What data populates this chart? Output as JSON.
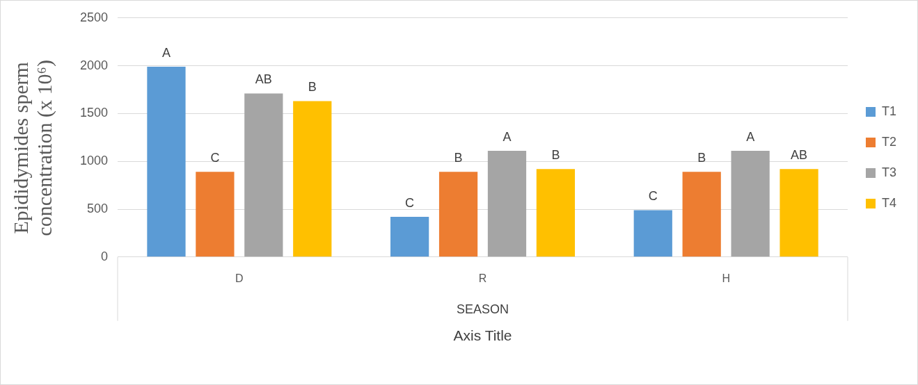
{
  "chart_data": {
    "type": "bar",
    "ylabel": "Epididymides sperm concentration (x 10⁶)",
    "xlabel": "Axis Title",
    "annotations": [
      "SEASON"
    ],
    "categories": [
      "D",
      "R",
      "H"
    ],
    "series": [
      {
        "name": "T1",
        "color": "#5b9bd5",
        "values": [
          1990,
          420,
          490
        ],
        "value_labels": [
          "A",
          "C",
          "C"
        ]
      },
      {
        "name": "T2",
        "color": "#ed7d31",
        "values": [
          890,
          890,
          890
        ],
        "value_labels": [
          "C",
          "B",
          "B"
        ]
      },
      {
        "name": "T3",
        "color": "#a5a5a5",
        "values": [
          1710,
          1110,
          1110
        ],
        "value_labels": [
          "AB",
          "A",
          "A"
        ]
      },
      {
        "name": "T4",
        "color": "#ffc000",
        "values": [
          1630,
          920,
          920
        ],
        "value_labels": [
          "B",
          "B",
          "AB"
        ]
      }
    ],
    "ylim": [
      0,
      2500
    ],
    "yticks": [
      0,
      500,
      1000,
      1500,
      2000,
      2500
    ],
    "grid": "y",
    "legend": "right"
  }
}
